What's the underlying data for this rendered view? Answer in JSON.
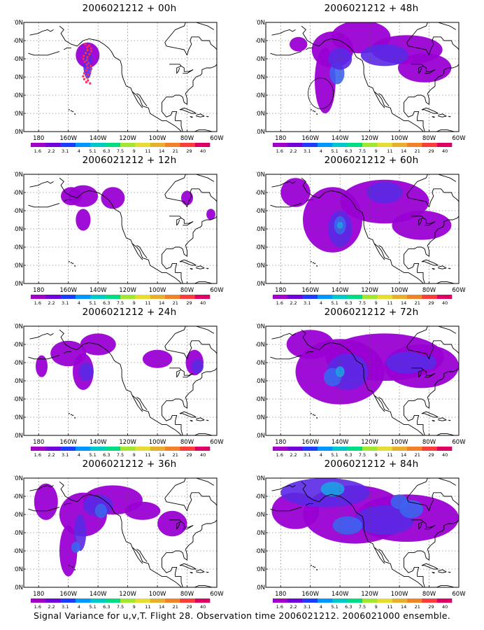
{
  "panels": [
    {
      "title": "2006021212 + 00h",
      "hours": 0
    },
    {
      "title": "2006021212 + 48h",
      "hours": 48
    },
    {
      "title": "2006021212 + 12h",
      "hours": 12
    },
    {
      "title": "2006021212 + 60h",
      "hours": 60
    },
    {
      "title": "2006021212 + 24h",
      "hours": 24
    },
    {
      "title": "2006021212 + 72h",
      "hours": 72
    },
    {
      "title": "2006021212 + 36h",
      "hours": 36
    },
    {
      "title": "2006021212 + 84h",
      "hours": 84
    }
  ],
  "axes": {
    "lat_labels": [
      "70N",
      "60N",
      "50N",
      "40N",
      "30N",
      "20N",
      "10N"
    ],
    "lon_labels": [
      "180",
      "160W",
      "140W",
      "120W",
      "100W",
      "80W",
      "60W"
    ],
    "lon_range": [
      -190,
      -60
    ],
    "lat_range": [
      10,
      70
    ],
    "grid": "dotted"
  },
  "colorbar": {
    "levels": [
      "1.6",
      "2.2",
      "3.1",
      "4",
      "5.1",
      "6.3",
      "7.5",
      "9",
      "11",
      "14",
      "21",
      "29",
      "40"
    ],
    "colors": [
      "#a000c8",
      "#6e00dc",
      "#1e3cff",
      "#0096ff",
      "#00c8c8",
      "#00dc82",
      "#a0e632",
      "#e6dc32",
      "#e6af2d",
      "#f08228",
      "#fa3c3c",
      "#dc0064"
    ]
  },
  "map_colors": {
    "ocean": "#ffffff",
    "coast": "#000000",
    "field_levels": [
      "#9a00d4",
      "#5a28e6",
      "#3c64f0",
      "#1ea0e6",
      "#28c8b4"
    ]
  },
  "footer": "Signal Variance for u,v,T. Flight 28. Observation time 2006021212. 2006021000 ensemble."
}
